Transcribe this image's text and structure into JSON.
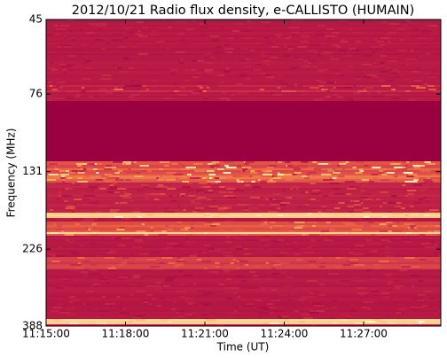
{
  "chart_data": {
    "type": "spectrogram",
    "title": "2012/10/21  Radio flux density, e-CALLISTO (HUMAIN)",
    "xlabel": "Time (UT)",
    "ylabel": "Frequency (MHz)",
    "xlim": [
      40500,
      41395
    ],
    "xticks": [
      {
        "value": 40500,
        "label": "11:15:00"
      },
      {
        "value": 40680,
        "label": "11:18:00"
      },
      {
        "value": 40860,
        "label": "11:21:00"
      },
      {
        "value": 41040,
        "label": "11:24:00"
      },
      {
        "value": 41220,
        "label": "11:27:00"
      }
    ],
    "ylim": [
      45,
      388
    ],
    "yticks": [
      45,
      76,
      131,
      226,
      388
    ],
    "y_scale": "log",
    "y_inverted": true
  }
}
